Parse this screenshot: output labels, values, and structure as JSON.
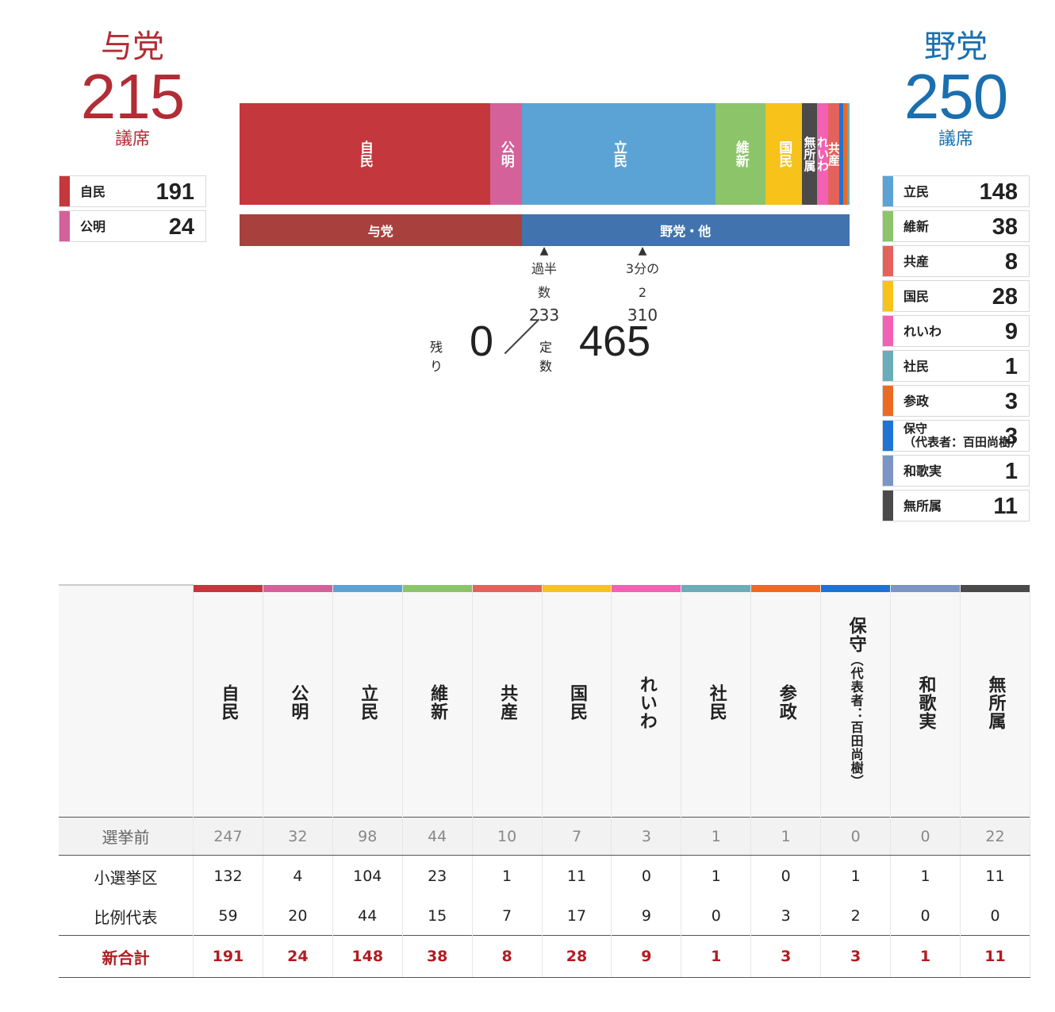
{
  "ruling": {
    "name": "与党",
    "total": "215",
    "unit": "議席",
    "parties": [
      {
        "name": "自民",
        "seats": "191",
        "color": "#c4373c"
      },
      {
        "name": "公明",
        "seats": "24",
        "color": "#d4619a"
      }
    ]
  },
  "opposition": {
    "name": "野党",
    "total": "250",
    "unit": "議席",
    "parties": [
      {
        "name": "立民",
        "seats": "148",
        "color": "#5ba3d5"
      },
      {
        "name": "維新",
        "seats": "38",
        "color": "#8cc46a"
      },
      {
        "name": "共産",
        "seats": "8",
        "color": "#e4625c"
      },
      {
        "name": "国民",
        "seats": "28",
        "color": "#f7c21a"
      },
      {
        "name": "れいわ",
        "seats": "9",
        "color": "#f261b4"
      },
      {
        "name": "社民",
        "seats": "1",
        "color": "#6aadb8"
      },
      {
        "name": "参政",
        "seats": "3",
        "color": "#ed6a24"
      },
      {
        "name": "保守",
        "sub": "（代表者：百田尚樹）",
        "seats": "3",
        "color": "#1f74d3"
      },
      {
        "name": "和歌実",
        "seats": "1",
        "color": "#7b95c4"
      },
      {
        "name": "無所属",
        "seats": "11",
        "color": "#4a4a4a"
      }
    ]
  },
  "chart_data": {
    "type": "bar",
    "stacked": true,
    "total_seats": 465,
    "segments": [
      {
        "party": "自民",
        "seats": 191,
        "color": "#c4373c",
        "label": "自民"
      },
      {
        "party": "公明",
        "seats": 24,
        "color": "#d4619a",
        "label": "公明"
      },
      {
        "party": "立民",
        "seats": 148,
        "color": "#5ba3d5",
        "label": "立民"
      },
      {
        "party": "維新",
        "seats": 38,
        "color": "#8cc46a",
        "label": "維新"
      },
      {
        "party": "国民",
        "seats": 28,
        "color": "#f7c21a",
        "label": "国民"
      },
      {
        "party": "無所属",
        "seats": 11,
        "color": "#4a4a4a",
        "label": "無所属"
      },
      {
        "party": "れいわ",
        "seats": 9,
        "color": "#f261b4",
        "label": "れいわ"
      },
      {
        "party": "共産",
        "seats": 8,
        "color": "#e4625c",
        "label": "共産"
      },
      {
        "party": "保守",
        "seats": 3,
        "color": "#1f74d3",
        "label": ""
      },
      {
        "party": "参政",
        "seats": 3,
        "color": "#ed6a24",
        "label": ""
      },
      {
        "party": "和歌実",
        "seats": 1,
        "color": "#7b95c4",
        "label": ""
      },
      {
        "party": "社民",
        "seats": 1,
        "color": "#6aadb8",
        "label": ""
      }
    ],
    "blocs": [
      {
        "label": "与党",
        "seats": 215,
        "color": "#a8403d"
      },
      {
        "label": "野党・他",
        "seats": 250,
        "color": "#4173ae"
      }
    ],
    "markers": [
      {
        "label": "過半数",
        "value": 233
      },
      {
        "label": "3分の2",
        "value": 310
      }
    ]
  },
  "markers_text": {
    "majority": {
      "line1": "過半",
      "line2": "数",
      "value": "233"
    },
    "twothirds": {
      "line1": "3分の",
      "line2": "2",
      "value": "310"
    }
  },
  "remaining": {
    "label": "残り",
    "value": "0",
    "slash": "／",
    "fixed_label": "定数",
    "fixed_value": "465"
  },
  "table": {
    "columns": [
      {
        "name": "自民",
        "color": "#c4373c"
      },
      {
        "name": "公明",
        "color": "#d4619a"
      },
      {
        "name": "立民",
        "color": "#5ba3d5"
      },
      {
        "name": "維新",
        "color": "#8cc46a"
      },
      {
        "name": "共産",
        "color": "#e4625c"
      },
      {
        "name": "国民",
        "color": "#f7c21a"
      },
      {
        "name": "れいわ",
        "color": "#f261b4"
      },
      {
        "name": "社民",
        "color": "#6aadb8"
      },
      {
        "name": "参政",
        "color": "#ed6a24"
      },
      {
        "name": "保守",
        "sub": "（代表者：百田尚樹）",
        "color": "#1f74d3"
      },
      {
        "name": "和歌実",
        "color": "#7b95c4"
      },
      {
        "name": "無所属",
        "color": "#4a4a4a"
      }
    ],
    "rows": [
      {
        "label": "選挙前",
        "kind": "pre",
        "values": [
          "247",
          "32",
          "98",
          "44",
          "10",
          "7",
          "3",
          "1",
          "1",
          "0",
          "0",
          "22"
        ]
      },
      {
        "label": "小選挙区",
        "kind": "smd",
        "values": [
          "132",
          "4",
          "104",
          "23",
          "1",
          "11",
          "0",
          "1",
          "0",
          "1",
          "1",
          "11"
        ]
      },
      {
        "label": "比例代表",
        "kind": "pr",
        "values": [
          "59",
          "20",
          "44",
          "15",
          "7",
          "17",
          "9",
          "0",
          "3",
          "2",
          "0",
          "0"
        ]
      },
      {
        "label": "新合計",
        "kind": "tot",
        "values": [
          "191",
          "24",
          "148",
          "38",
          "8",
          "28",
          "9",
          "1",
          "3",
          "3",
          "1",
          "11"
        ]
      }
    ]
  }
}
